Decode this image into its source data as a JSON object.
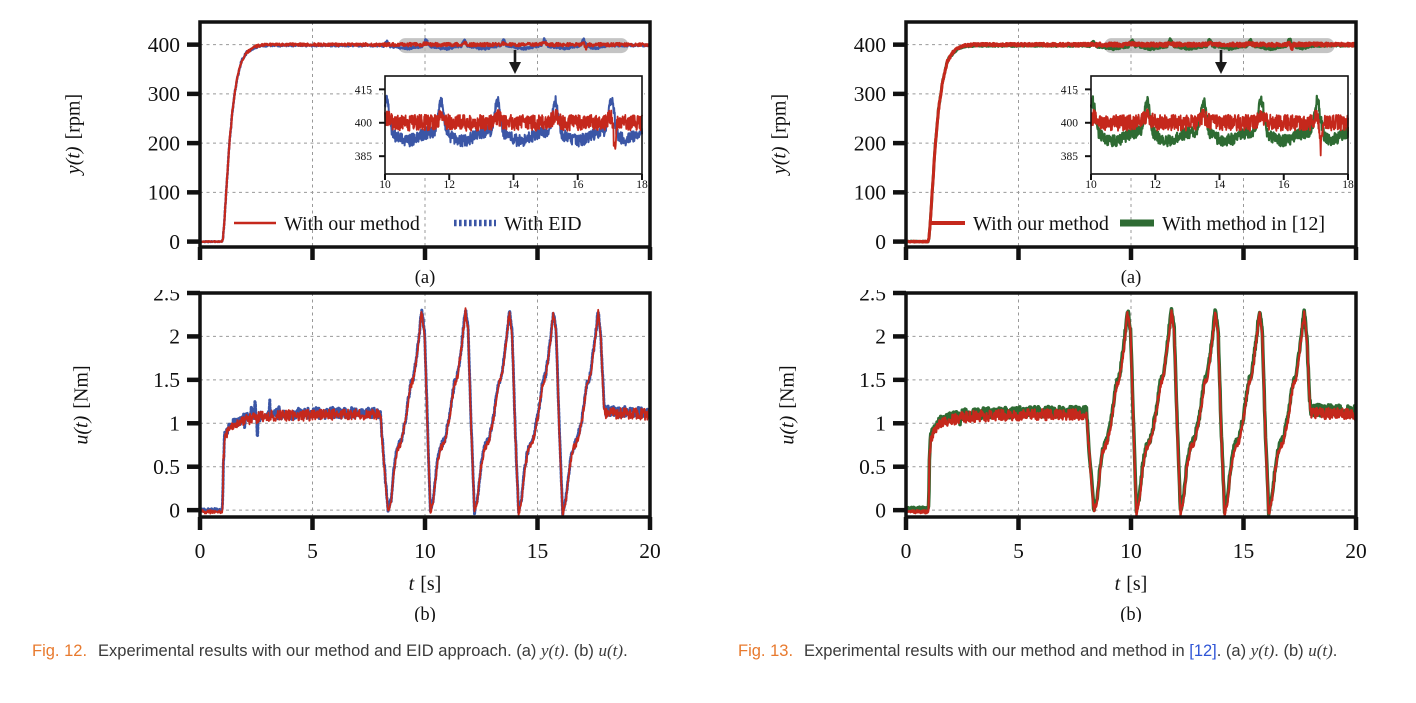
{
  "colors": {
    "red": "#c5281c",
    "blue": "#3b56a6",
    "green": "#2e6b33",
    "highlight": "#b5b5b5",
    "axis": "#111111",
    "grid": "#999999",
    "arrow": "#1a1a1a",
    "caption_fignum": "#e87a2e",
    "caption_cite": "#2f55d6",
    "caption_text": "#3a3a3a"
  },
  "waveforms": {
    "y_our": [
      [
        0,
        0,
        0.8
      ],
      [
        0.98,
        0,
        0.8
      ],
      [
        1.02,
        6,
        2
      ],
      [
        1.08,
        40,
        3
      ],
      [
        1.18,
        112,
        4
      ],
      [
        1.3,
        196,
        4
      ],
      [
        1.45,
        270,
        4
      ],
      [
        1.62,
        325,
        3
      ],
      [
        1.85,
        368,
        3
      ],
      [
        2.1,
        385,
        3
      ],
      [
        2.35,
        394,
        2.5
      ],
      [
        2.6,
        398,
        2.5
      ],
      [
        3,
        400,
        2.5
      ],
      [
        8,
        400,
        3
      ],
      [
        8.5,
        400,
        3.5
      ],
      [
        18,
        400,
        3.5
      ],
      [
        20,
        400,
        3
      ]
    ],
    "y_red_bumps": [
      [
        10.05,
        3,
        0.12
      ],
      [
        11.75,
        3,
        0.12
      ],
      [
        13.5,
        3,
        0.12
      ],
      [
        15.3,
        3,
        0.12
      ],
      [
        17.05,
        3,
        0.12
      ],
      [
        17.15,
        -10,
        0.05
      ]
    ],
    "y_comp": [
      [
        0,
        0,
        0.8
      ],
      [
        0.98,
        0,
        0.8
      ],
      [
        1.02,
        6,
        2
      ],
      [
        1.08,
        40,
        3
      ],
      [
        1.18,
        112,
        4
      ],
      [
        1.3,
        196,
        4
      ],
      [
        1.45,
        270,
        4
      ],
      [
        1.62,
        325,
        3
      ],
      [
        1.85,
        368,
        3
      ],
      [
        2.1,
        385,
        3
      ],
      [
        2.35,
        393,
        2.5
      ],
      [
        2.6,
        397,
        2
      ],
      [
        3,
        398.5,
        2
      ],
      [
        8,
        398.5,
        2
      ],
      [
        8.2,
        397,
        2.5
      ],
      [
        17.6,
        397.5,
        2.5
      ],
      [
        18.2,
        398.5,
        2
      ],
      [
        20,
        398.8,
        2
      ]
    ],
    "y_comp_bumps": [
      [
        8.3,
        10,
        0.09
      ],
      [
        10.05,
        13,
        0.09
      ],
      [
        11.75,
        13,
        0.09
      ],
      [
        13.5,
        13,
        0.09
      ],
      [
        15.3,
        13,
        0.09
      ],
      [
        17.05,
        13,
        0.09
      ],
      [
        9.2,
        -5,
        0.4
      ],
      [
        10.9,
        -5,
        0.4
      ],
      [
        12.6,
        -5,
        0.4
      ],
      [
        14.4,
        -5,
        0.4
      ],
      [
        16.2,
        -5,
        0.4
      ],
      [
        17.6,
        -4,
        0.3
      ]
    ],
    "y_inset_our": [
      [
        10,
        400,
        3.6
      ],
      [
        18,
        400,
        3.6
      ]
    ],
    "y_inset_our_bumps": [
      [
        10.05,
        2.5,
        0.15
      ],
      [
        11.75,
        2.5,
        0.15
      ],
      [
        13.5,
        2.5,
        0.15
      ],
      [
        15.3,
        2.5,
        0.15
      ],
      [
        17.05,
        2.5,
        0.15
      ],
      [
        17.15,
        -13,
        0.05
      ]
    ],
    "y_inset_comp": [
      [
        10,
        396.5,
        2.7
      ],
      [
        18,
        396.5,
        2.7
      ]
    ],
    "y_inset_comp_bumps": [
      [
        10.05,
        14,
        0.12
      ],
      [
        11.75,
        14,
        0.12
      ],
      [
        13.5,
        14,
        0.12
      ],
      [
        15.3,
        14,
        0.12
      ],
      [
        17.05,
        14,
        0.12
      ],
      [
        10.7,
        -4.5,
        0.5
      ],
      [
        12.4,
        -4.5,
        0.5
      ],
      [
        14.2,
        -4.5,
        0.5
      ],
      [
        16,
        -4.5,
        0.5
      ],
      [
        17.5,
        -4,
        0.35
      ]
    ],
    "u_main": [
      [
        0,
        -0.02,
        0.02
      ],
      [
        0.99,
        -0.02,
        0.02
      ],
      [
        1.01,
        0.1,
        0.06
      ],
      [
        1.04,
        0.55,
        0.1
      ],
      [
        1.1,
        0.82,
        0.07
      ],
      [
        1.25,
        0.92,
        0.05
      ],
      [
        1.5,
        0.99,
        0.05
      ],
      [
        1.9,
        1.03,
        0.06
      ],
      [
        2.4,
        1.06,
        0.065
      ],
      [
        3,
        1.08,
        0.065
      ],
      [
        4,
        1.09,
        0.065
      ],
      [
        6,
        1.1,
        0.065
      ],
      [
        8.02,
        1.1,
        0.06
      ],
      [
        8.1,
        0.8,
        0.05
      ],
      [
        8.25,
        0.3,
        0.04
      ],
      [
        8.35,
        -0.02,
        0.03
      ],
      [
        8.5,
        0.1,
        0.03
      ],
      [
        8.62,
        0.45,
        0.04
      ],
      [
        8.75,
        0.68,
        0.04
      ],
      [
        8.95,
        0.78,
        0.04
      ],
      [
        9.15,
        1.05,
        0.04
      ],
      [
        9.35,
        1.42,
        0.04
      ],
      [
        9.5,
        1.52,
        0.04
      ],
      [
        9.68,
        1.85,
        0.04
      ],
      [
        9.85,
        2.27,
        0.04
      ],
      [
        9.98,
        2.05,
        0.04
      ],
      [
        10.12,
        0.9,
        0.04
      ],
      [
        10.24,
        -0.04,
        0.03
      ],
      [
        10.38,
        0.12,
        0.03
      ],
      [
        10.52,
        0.48,
        0.04
      ],
      [
        10.68,
        0.7,
        0.04
      ],
      [
        10.88,
        0.8,
        0.04
      ],
      [
        11.1,
        1.07,
        0.04
      ],
      [
        11.3,
        1.44,
        0.04
      ],
      [
        11.45,
        1.54,
        0.04
      ],
      [
        11.62,
        1.87,
        0.04
      ],
      [
        11.8,
        2.29,
        0.04
      ],
      [
        11.92,
        2.05,
        0.04
      ],
      [
        12.06,
        0.9,
        0.04
      ],
      [
        12.2,
        -0.04,
        0.03
      ],
      [
        12.34,
        0.12,
        0.03
      ],
      [
        12.48,
        0.48,
        0.04
      ],
      [
        12.64,
        0.7,
        0.04
      ],
      [
        12.84,
        0.8,
        0.04
      ],
      [
        13.06,
        1.07,
        0.04
      ],
      [
        13.26,
        1.44,
        0.04
      ],
      [
        13.41,
        1.54,
        0.04
      ],
      [
        13.58,
        1.87,
        0.04
      ],
      [
        13.75,
        2.27,
        0.04
      ],
      [
        13.87,
        2.05,
        0.04
      ],
      [
        14.01,
        0.9,
        0.04
      ],
      [
        14.16,
        -0.05,
        0.03
      ],
      [
        14.3,
        0.12,
        0.03
      ],
      [
        14.44,
        0.48,
        0.04
      ],
      [
        14.6,
        0.7,
        0.04
      ],
      [
        14.8,
        0.8,
        0.04
      ],
      [
        15.02,
        1.07,
        0.04
      ],
      [
        15.22,
        1.44,
        0.04
      ],
      [
        15.37,
        1.54,
        0.04
      ],
      [
        15.54,
        1.87,
        0.04
      ],
      [
        15.71,
        2.27,
        0.04
      ],
      [
        15.83,
        2.05,
        0.04
      ],
      [
        15.97,
        0.9,
        0.04
      ],
      [
        16.12,
        -0.06,
        0.03
      ],
      [
        16.27,
        0.12,
        0.03
      ],
      [
        16.42,
        0.48,
        0.04
      ],
      [
        16.58,
        0.7,
        0.04
      ],
      [
        16.78,
        0.8,
        0.04
      ],
      [
        17,
        1.07,
        0.04
      ],
      [
        17.2,
        1.44,
        0.04
      ],
      [
        17.35,
        1.54,
        0.04
      ],
      [
        17.52,
        1.87,
        0.04
      ],
      [
        17.7,
        2.27,
        0.04
      ],
      [
        17.82,
        1.95,
        0.05
      ],
      [
        17.93,
        1.3,
        0.06
      ],
      [
        18,
        1.12,
        0.065
      ],
      [
        20,
        1.1,
        0.065
      ]
    ],
    "u_blue_bumps": [
      [
        2,
        -0.12,
        0.02
      ],
      [
        2.3,
        0.16,
        0.025
      ],
      [
        2.45,
        0.22,
        0.02
      ],
      [
        2.55,
        -0.22,
        0.02
      ],
      [
        3.1,
        0.12,
        0.02
      ],
      [
        3.5,
        0.14,
        0.018
      ]
    ],
    "u_green_bumps": [
      [
        2,
        0.06,
        0.03
      ],
      [
        2.4,
        -0.15,
        0.02
      ]
    ]
  },
  "chart_data": [
    {
      "id": "fig12a",
      "type": "line",
      "title": "",
      "xlabel": "",
      "ylabel": "y(t) [rpm]",
      "xlim": [
        0,
        20
      ],
      "ylim": [
        -11,
        446
      ],
      "xticks": [
        0,
        5,
        10,
        15,
        20
      ],
      "xtick_labels": [],
      "yticks": [
        0,
        100,
        200,
        300,
        400
      ],
      "ytick_labels": [
        "0",
        "100",
        "200",
        "300",
        "400"
      ],
      "xgrid": [
        5,
        10,
        15
      ],
      "ygrid": [
        100,
        200,
        300,
        400
      ],
      "ylabel_math": "y(t)",
      "ylabel_unit": "[rpm]",
      "sublabel": "(a)",
      "highlight": {
        "x1": 8.8,
        "x2": 19.05,
        "y": 398,
        "h": 15
      },
      "arrow_x": 14,
      "series": [
        {
          "name": "With EID",
          "color": "@colors.blue",
          "width": 2.6,
          "dash": "2.2 2",
          "seed": 11,
          "points": "@waveforms.y_comp",
          "bumps": "@waveforms.y_comp_bumps"
        },
        {
          "name": "With our method",
          "color": "@colors.red",
          "width": 2.2,
          "seed": 5,
          "points": "@waveforms.y_our",
          "bumps": "@waveforms.y_red_bumps"
        }
      ],
      "legend": [
        {
          "label": "With our method",
          "color": "@colors.red",
          "lw": 2.5
        },
        {
          "label": "With EID",
          "color": "@colors.blue",
          "lw": 6.5,
          "dash": "2.6 2.4"
        }
      ]
    },
    {
      "id": "fig12a_inset",
      "type": "line",
      "title": "",
      "xlabel": "",
      "ylabel": "",
      "xlim": [
        10,
        18
      ],
      "ylim": [
        377,
        421
      ],
      "xticks": [
        10,
        12,
        14,
        16,
        18
      ],
      "xtick_labels": [
        "10",
        "12",
        "14",
        "16",
        "18"
      ],
      "yticks": [
        385,
        400,
        415
      ],
      "ytick_labels": [
        "385",
        "400",
        "415"
      ],
      "xgrid": [],
      "ygrid": [],
      "series": [
        {
          "name": "With EID",
          "color": "@colors.blue",
          "width": 2,
          "seed": 23,
          "points": "@waveforms.y_inset_comp",
          "bumps": "@waveforms.y_inset_comp_bumps"
        },
        {
          "name": "With our method",
          "color": "@colors.red",
          "width": 1.8,
          "seed": 9,
          "points": "@waveforms.y_inset_our",
          "bumps": "@waveforms.y_inset_our_bumps"
        }
      ]
    },
    {
      "id": "fig12b",
      "type": "line",
      "title": "",
      "xlabel": "t [s]",
      "ylabel": "u(t) [Nm]",
      "xlim": [
        0,
        20
      ],
      "ylim": [
        -0.079,
        2.5
      ],
      "xticks": [
        0,
        5,
        10,
        15,
        20
      ],
      "xtick_labels": [
        "0",
        "5",
        "10",
        "15",
        "20"
      ],
      "yticks": [
        0,
        0.5,
        1,
        1.5,
        2,
        2.5
      ],
      "ytick_labels": [
        "0",
        "0.5",
        "1",
        "1.5",
        "2",
        "2.5"
      ],
      "xgrid": [
        5,
        10,
        15
      ],
      "ygrid": [
        0,
        0.5,
        1,
        1.5,
        2
      ],
      "ylabel_math": "u(t)",
      "ylabel_unit": "[Nm]",
      "xlabel_math": "t",
      "xlabel_unit": "[s]",
      "sublabel": "(b)",
      "series": [
        {
          "name": "With EID",
          "color": "@colors.blue",
          "width": 3,
          "dash": "2 2",
          "seed": 31,
          "yoff": 0.02,
          "points": "@waveforms.u_main",
          "bumps": "@waveforms.u_blue_bumps"
        },
        {
          "name": "With our method",
          "color": "@colors.red",
          "width": 1.8,
          "seed": 17,
          "points": "@waveforms.u_main"
        }
      ]
    },
    {
      "id": "fig13a",
      "type": "line",
      "title": "",
      "xlabel": "",
      "ylabel": "y(t) [rpm]",
      "xlim": [
        0,
        20
      ],
      "ylim": [
        -11,
        446
      ],
      "xticks": [
        0,
        5,
        10,
        15,
        20
      ],
      "xtick_labels": [],
      "yticks": [
        0,
        100,
        200,
        300,
        400
      ],
      "ytick_labels": [
        "0",
        "100",
        "200",
        "300",
        "400"
      ],
      "xgrid": [
        5,
        10,
        15
      ],
      "ygrid": [
        100,
        200,
        300,
        400
      ],
      "ylabel_math": "y(t)",
      "ylabel_unit": "[rpm]",
      "sublabel": "(a)",
      "highlight": {
        "x1": 8.8,
        "x2": 19.05,
        "y": 398,
        "h": 15
      },
      "arrow_x": 14,
      "series": [
        {
          "name": "With method in [12]",
          "color": "@colors.green",
          "width": 3,
          "seed": 41,
          "points": "@waveforms.y_comp",
          "bumps": "@waveforms.y_comp_bumps"
        },
        {
          "name": "With our method",
          "color": "@colors.red",
          "width": 3,
          "seed": 43,
          "points": "@waveforms.y_our",
          "bumps": "@waveforms.y_red_bumps"
        }
      ],
      "legend": [
        {
          "label": "With our method",
          "color": "@colors.red",
          "lw": 4
        },
        {
          "label": "With method in [12]",
          "color": "@colors.green",
          "lw": 7
        }
      ]
    },
    {
      "id": "fig13a_inset",
      "type": "line",
      "title": "",
      "xlabel": "",
      "ylabel": "",
      "xlim": [
        10,
        18
      ],
      "ylim": [
        377,
        421
      ],
      "xticks": [
        10,
        12,
        14,
        16,
        18
      ],
      "xtick_labels": [
        "10",
        "12",
        "14",
        "16",
        "18"
      ],
      "yticks": [
        385,
        400,
        415
      ],
      "ytick_labels": [
        "385",
        "400",
        "415"
      ],
      "xgrid": [],
      "ygrid": [],
      "series": [
        {
          "name": "With method in [12]",
          "color": "@colors.green",
          "width": 2.2,
          "seed": 47,
          "points": "@waveforms.y_inset_comp",
          "bumps": "@waveforms.y_inset_comp_bumps"
        },
        {
          "name": "With our method",
          "color": "@colors.red",
          "width": 1.8,
          "seed": 51,
          "points": "@waveforms.y_inset_our",
          "bumps": "@waveforms.y_inset_our_bumps"
        }
      ]
    },
    {
      "id": "fig13b",
      "type": "line",
      "title": "",
      "xlabel": "t [s]",
      "ylabel": "u(t) [Nm]",
      "xlim": [
        0,
        20
      ],
      "ylim": [
        -0.079,
        2.5
      ],
      "xticks": [
        0,
        5,
        10,
        15,
        20
      ],
      "xtick_labels": [
        "0",
        "5",
        "10",
        "15",
        "20"
      ],
      "yticks": [
        0,
        0.5,
        1,
        1.5,
        2,
        2.5
      ],
      "ytick_labels": [
        "0",
        "0.5",
        "1",
        "1.5",
        "2",
        "2.5"
      ],
      "xgrid": [
        5,
        10,
        15
      ],
      "ygrid": [
        0,
        0.5,
        1,
        1.5,
        2
      ],
      "ylabel_math": "u(t)",
      "ylabel_unit": "[Nm]",
      "xlabel_math": "t",
      "xlabel_unit": "[s]",
      "sublabel": "(b)",
      "series": [
        {
          "name": "With method in [12]",
          "color": "@colors.green",
          "width": 3.6,
          "seed": 61,
          "yoff": 0.035,
          "points": "@waveforms.u_main",
          "bumps": "@waveforms.u_green_bumps"
        },
        {
          "name": "With our method",
          "color": "@colors.red",
          "width": 2.2,
          "seed": 67,
          "points": "@waveforms.u_main"
        }
      ]
    }
  ],
  "captions": {
    "fig12": {
      "segments": [
        {
          "t": "Fig. 12.",
          "s": "fignum"
        },
        {
          "t": "Experimental results with our method and EID approach. ",
          "s": "text"
        },
        {
          "t": "(a) ",
          "s": "text"
        },
        {
          "t": "y(t)",
          "s": "math"
        },
        {
          "t": ". (b) ",
          "s": "text"
        },
        {
          "t": "u(t)",
          "s": "math"
        },
        {
          "t": ".",
          "s": "text"
        }
      ]
    },
    "fig13": {
      "segments": [
        {
          "t": "Fig. 13.",
          "s": "fignum"
        },
        {
          "t": "Experimental results with our method and method in ",
          "s": "text"
        },
        {
          "t": "[12]",
          "s": "cite"
        },
        {
          "t": ". (a) ",
          "s": "text"
        },
        {
          "t": "y(t)",
          "s": "math"
        },
        {
          "t": ". (b) ",
          "s": "text"
        },
        {
          "t": "u(t)",
          "s": "math"
        },
        {
          "t": ".",
          "s": "text"
        }
      ]
    }
  }
}
